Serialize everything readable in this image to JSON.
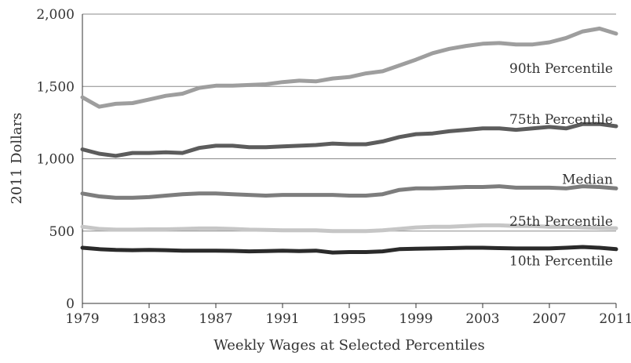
{
  "chart_data": {
    "type": "line",
    "title": "",
    "xlabel": "Weekly Wages at Selected Percentiles",
    "ylabel": "2011 Dollars",
    "xlim": [
      1979,
      2011
    ],
    "ylim": [
      0,
      2000
    ],
    "x_ticks": [
      1979,
      1983,
      1987,
      1991,
      1995,
      1999,
      2003,
      2007,
      2011
    ],
    "y_ticks": [
      0,
      500,
      1000,
      1500,
      2000
    ],
    "y_tick_labels": [
      "0",
      "500",
      "1,000",
      "1,500",
      "2,000"
    ],
    "grid": "horizontal",
    "legend": "none",
    "x": [
      1979,
      1980,
      1981,
      1982,
      1983,
      1984,
      1985,
      1986,
      1987,
      1988,
      1989,
      1990,
      1991,
      1992,
      1993,
      1994,
      1995,
      1996,
      1997,
      1998,
      1999,
      2000,
      2001,
      2002,
      2003,
      2004,
      2005,
      2006,
      2007,
      2008,
      2009,
      2010,
      2011
    ],
    "series": [
      {
        "name": "90th Percentile",
        "color": "#9e9e9e",
        "values": [
          1425,
          1360,
          1380,
          1385,
          1410,
          1435,
          1450,
          1490,
          1505,
          1505,
          1510,
          1515,
          1530,
          1540,
          1535,
          1555,
          1565,
          1590,
          1605,
          1645,
          1685,
          1730,
          1760,
          1780,
          1795,
          1800,
          1790,
          1790,
          1805,
          1835,
          1880,
          1900,
          1865
        ]
      },
      {
        "name": "75th Percentile",
        "color": "#5c5c5c",
        "values": [
          1065,
          1035,
          1020,
          1040,
          1040,
          1045,
          1040,
          1075,
          1090,
          1090,
          1080,
          1080,
          1085,
          1090,
          1095,
          1105,
          1100,
          1100,
          1120,
          1150,
          1170,
          1175,
          1190,
          1200,
          1210,
          1210,
          1200,
          1210,
          1220,
          1210,
          1240,
          1240,
          1225
        ]
      },
      {
        "name": "Median",
        "color": "#7d7d7d",
        "values": [
          760,
          740,
          730,
          730,
          735,
          745,
          755,
          760,
          760,
          755,
          750,
          745,
          750,
          750,
          750,
          750,
          745,
          745,
          755,
          785,
          795,
          795,
          800,
          805,
          805,
          810,
          800,
          800,
          800,
          795,
          810,
          805,
          795
        ]
      },
      {
        "name": "25th Percentile",
        "color": "#c6c6c6",
        "values": [
          530,
          515,
          510,
          510,
          512,
          512,
          515,
          518,
          518,
          515,
          510,
          508,
          505,
          505,
          505,
          500,
          500,
          500,
          505,
          515,
          525,
          530,
          530,
          535,
          540,
          540,
          535,
          535,
          530,
          530,
          525,
          522,
          520
        ]
      },
      {
        "name": "10th Percentile",
        "color": "#2a2a2a",
        "values": [
          385,
          375,
          370,
          368,
          370,
          368,
          365,
          365,
          365,
          363,
          360,
          362,
          365,
          362,
          365,
          352,
          355,
          355,
          360,
          375,
          378,
          380,
          382,
          385,
          385,
          382,
          380,
          380,
          380,
          385,
          390,
          385,
          375
        ]
      }
    ]
  }
}
